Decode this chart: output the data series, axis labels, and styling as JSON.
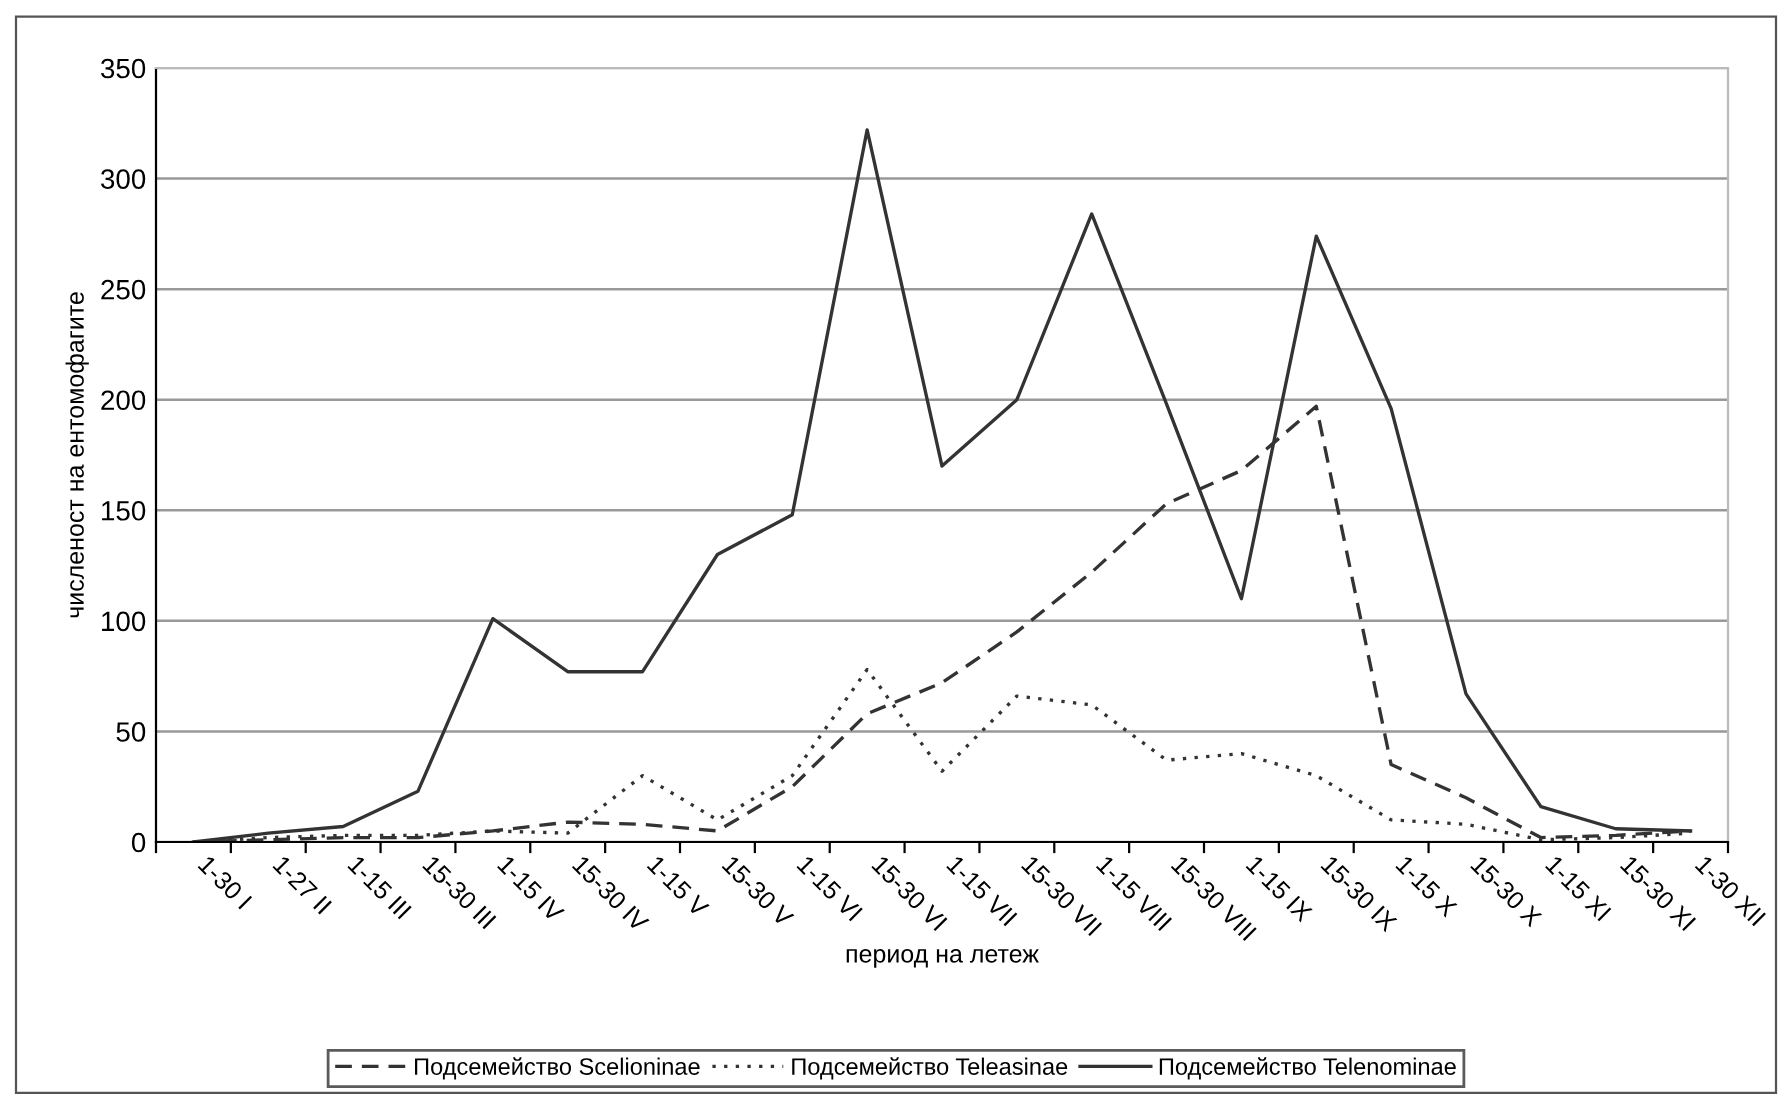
{
  "chart_data": {
    "type": "line",
    "xlabel": "период на летеж",
    "ylabel": "численост на ентомофагите",
    "categories": [
      "1-30 I",
      "1-27 II",
      "1-15 III",
      "15-30 III",
      "1-15 IV",
      "15-30 IV",
      "1-15 V",
      "15-30 V",
      "1-15 VI",
      "15-30 VI",
      "1-15 VII",
      "15-30 VII",
      "1-15 VIII",
      "15-30 VIII",
      "1-15 IX",
      "15-30 IX",
      "1-15 X",
      "15-30 X",
      "1-15 XI",
      "15-30 XI",
      "1-30 XII"
    ],
    "series": [
      {
        "name": "Подсемейство Scelioninae",
        "color": "#333333",
        "line_style": "dashed",
        "values": [
          0,
          1,
          2,
          2,
          5,
          9,
          8,
          5,
          25,
          58,
          72,
          95,
          122,
          153,
          168,
          197,
          35,
          20,
          2,
          3,
          5
        ]
      },
      {
        "name": "Подсемейство Teleasinae",
        "color": "#333333",
        "line_style": "dotted",
        "values": [
          0,
          2,
          3,
          3,
          5,
          4,
          30,
          10,
          30,
          78,
          32,
          66,
          62,
          37,
          40,
          30,
          10,
          8,
          1,
          2,
          4
        ]
      },
      {
        "name": "Подсемейство Telenominae",
        "color": "#333333",
        "line_style": "solid",
        "values": [
          0,
          4,
          7,
          23,
          101,
          77,
          77,
          130,
          148,
          322,
          170,
          200,
          284,
          198,
          110,
          274,
          196,
          67,
          16,
          6,
          5
        ]
      }
    ],
    "ylim": [
      0,
      350
    ],
    "yticks": [
      0,
      50,
      100,
      150,
      200,
      250,
      300,
      350
    ],
    "grid": "y",
    "legend": "bottom",
    "marker": "none"
  }
}
